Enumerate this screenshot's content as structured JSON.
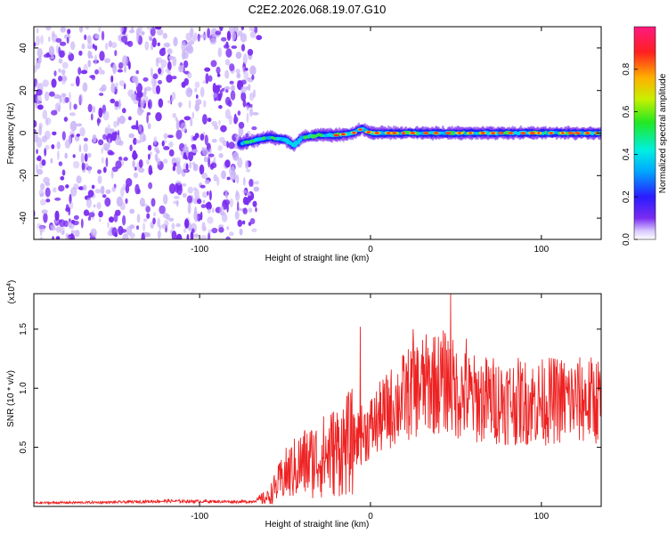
{
  "title": "C2E2.2026.068.19.07.G10",
  "colors": {
    "signal_line": "#ee2222",
    "noise_dots": "#7a2cf0",
    "noise_dots_faint": "#c9b3f7",
    "frame": "#000000"
  },
  "chart_data": [
    {
      "type": "heatmap",
      "name": "spectrogram",
      "xlabel": "Height of straight line (km)",
      "ylabel": "Frequency (Hz)",
      "xlim": [
        -197,
        135
      ],
      "ylim": [
        -50,
        50
      ],
      "xticks": [
        -100,
        0,
        100
      ],
      "xtick_labels": [
        "-100",
        "0",
        "100"
      ],
      "yticks": [
        -40,
        -20,
        0,
        20,
        40
      ],
      "ytick_labels": [
        "-40",
        "-20",
        "0",
        "20",
        "40"
      ],
      "noise_region_x": [
        -197,
        -67
      ],
      "signal_track": {
        "x": [
          -77,
          -70,
          -60,
          -50,
          -45,
          -40,
          -30,
          -20,
          -10,
          -5,
          0,
          10,
          20,
          30,
          40,
          50,
          60,
          70,
          80,
          90,
          100,
          110,
          120,
          135
        ],
        "freq": [
          -5,
          -4,
          -2,
          -3,
          -6,
          -2,
          -1,
          -1,
          0,
          2,
          0,
          0,
          0,
          0,
          0,
          0,
          0,
          0,
          0,
          0,
          0,
          0,
          0,
          0
        ]
      },
      "colorbar": {
        "label": "Normalized spectral amplitude",
        "range": [
          0,
          1
        ],
        "ticks": [
          0.0,
          0.2,
          0.4,
          0.6,
          0.8
        ],
        "tick_labels": [
          "0.0",
          "0.2",
          "0.4",
          "0.6",
          "0.8"
        ]
      }
    },
    {
      "type": "line",
      "name": "snr",
      "xlabel": "Height of straight line (km)",
      "ylabel": "SNR (10 * v/v)",
      "multiplier": "(x10",
      "multiplier_exp": "4",
      "multiplier_close": ")",
      "xlim": [
        -197,
        135
      ],
      "ylim": [
        0,
        18000
      ],
      "xticks": [
        -100,
        0,
        100
      ],
      "xtick_labels": [
        "-100",
        "0",
        "100"
      ],
      "yticks": [
        5000,
        10000,
        15000
      ],
      "ytick_labels": [
        "0.5",
        "1.0",
        "1.5"
      ],
      "envelope": {
        "x": [
          -197,
          -150,
          -120,
          -80,
          -70,
          -60,
          -55,
          -50,
          -40,
          -30,
          -20,
          -10,
          0,
          10,
          20,
          30,
          40,
          45,
          50,
          60,
          70,
          80,
          90,
          100,
          110,
          120,
          135
        ],
        "y": [
          300,
          350,
          450,
          400,
          400,
          800,
          1800,
          2800,
          3800,
          4300,
          5000,
          5800,
          7000,
          8500,
          9800,
          10800,
          11000,
          11200,
          10200,
          9600,
          9500,
          9400,
          9300,
          9300,
          9500,
          9400,
          9500
        ]
      },
      "peaks": [
        {
          "x": 47,
          "y": 18000
        },
        {
          "x": -6,
          "y": 15200
        },
        {
          "x": 25,
          "y": 15000
        },
        {
          "x": 37,
          "y": 14300
        },
        {
          "x": 56,
          "y": 14200
        }
      ]
    }
  ]
}
